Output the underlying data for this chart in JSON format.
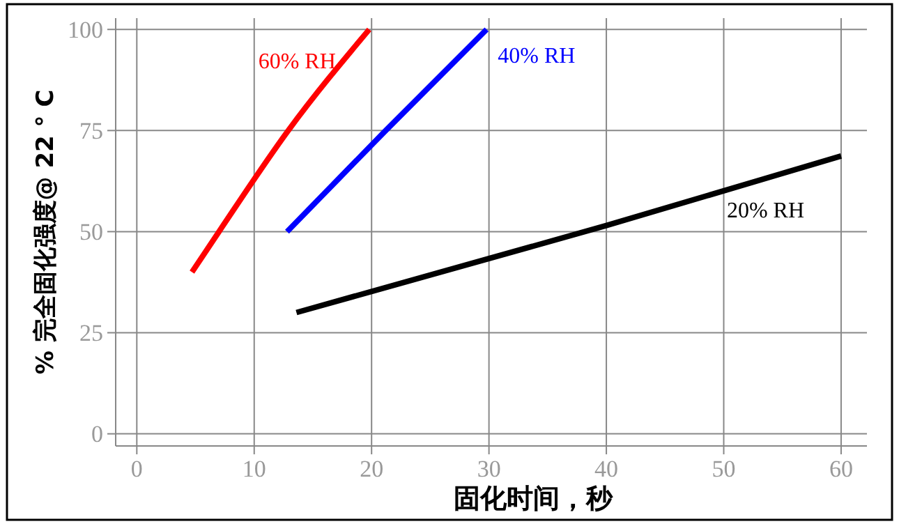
{
  "chart_data": {
    "type": "line",
    "xlabel": "固化时间，秒",
    "ylabel": "% 完全固化强度@ 22 ° C",
    "xlim": [
      -1.8,
      62.2
    ],
    "ylim": [
      -3,
      102.8
    ],
    "xticks": [
      0,
      10,
      20,
      30,
      40,
      50,
      60
    ],
    "yticks": [
      0,
      25,
      50,
      75,
      100
    ],
    "grid": true,
    "marker": "none",
    "line_style": "solid",
    "series": [
      {
        "name": "60% RH",
        "color": "#ff0000",
        "x": [
          4.7,
          7,
          12.9,
          19.8
        ],
        "values": [
          40,
          50,
          75,
          100
        ]
      },
      {
        "name": "40% RH",
        "color": "#0000ff",
        "x": [
          12.8,
          21.2,
          29.8
        ],
        "values": [
          50,
          75,
          100
        ]
      },
      {
        "name": "20% RH",
        "color": "#000000",
        "x": [
          13.6,
          40,
          60
        ],
        "values": [
          30,
          51.5,
          68.7
        ]
      }
    ]
  }
}
